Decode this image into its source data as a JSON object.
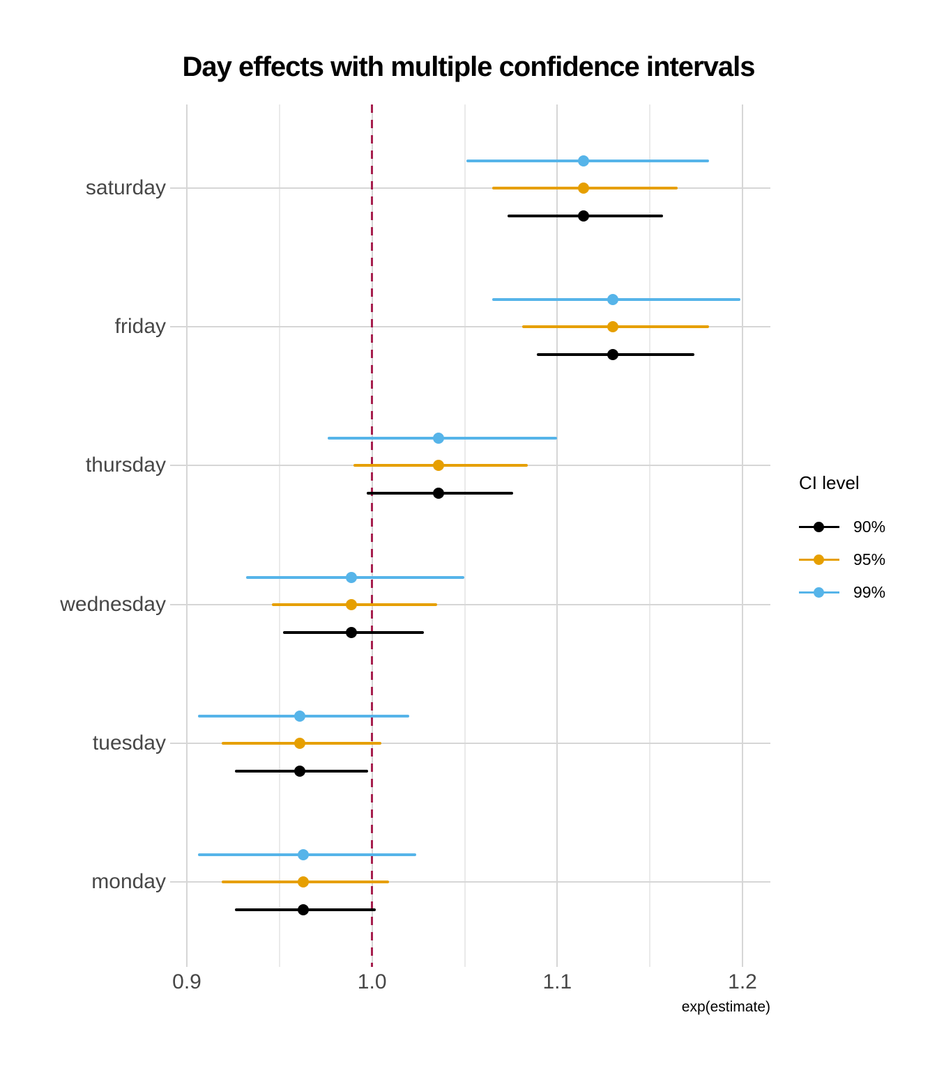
{
  "title": "Day effects with multiple confidence intervals",
  "x_axis": {
    "title": "exp(estimate)",
    "ticks": [
      {
        "label": "0.9",
        "value": 0.9
      },
      {
        "label": "1.0",
        "value": 1.0
      },
      {
        "label": "1.1",
        "value": 1.1
      },
      {
        "label": "1.2",
        "value": 1.2
      }
    ],
    "minor_gridline_values": [
      0.95,
      1.05,
      1.15
    ]
  },
  "y_axis": {
    "categories_top_to_bottom": [
      "saturday",
      "friday",
      "thursday",
      "wednesday",
      "tuesday",
      "monday"
    ]
  },
  "legend": {
    "title": "CI level",
    "items": [
      {
        "label": "90%",
        "color": "#000000"
      },
      {
        "label": "95%",
        "color": "#e69f00"
      },
      {
        "label": "99%",
        "color": "#56b4e9"
      }
    ]
  },
  "reference_line": {
    "x": 1.0,
    "color": "#a61e4d",
    "style": "dashed"
  },
  "colors": {
    "ci_90": "#000000",
    "ci_95": "#e69f00",
    "ci_99": "#56b4e9",
    "gridline_major": "#d6d6d6",
    "gridline_minor": "#eaeaea"
  },
  "chart_data": {
    "type": "scatter",
    "subtype": "dot-and-whisker confidence intervals",
    "title": "Day effects with multiple confidence intervals",
    "xlabel": "exp(estimate)",
    "ylabel": "",
    "xlim": [
      0.868,
      1.215
    ],
    "grid": true,
    "legend_position": "right",
    "categories": [
      "saturday",
      "friday",
      "thursday",
      "wednesday",
      "tuesday",
      "monday"
    ],
    "series": [
      {
        "name": "90%",
        "color": "#000000",
        "row_offset": "bottom",
        "points": [
          {
            "category": "saturday",
            "estimate": 1.114,
            "lower": 1.073,
            "upper": 1.157
          },
          {
            "category": "friday",
            "estimate": 1.13,
            "lower": 1.089,
            "upper": 1.174
          },
          {
            "category": "thursday",
            "estimate": 1.036,
            "lower": 0.997,
            "upper": 1.076
          },
          {
            "category": "wednesday",
            "estimate": 0.989,
            "lower": 0.952,
            "upper": 1.028
          },
          {
            "category": "tuesday",
            "estimate": 0.961,
            "lower": 0.926,
            "upper": 0.998
          },
          {
            "category": "monday",
            "estimate": 0.963,
            "lower": 0.926,
            "upper": 1.002
          }
        ]
      },
      {
        "name": "95%",
        "color": "#e69f00",
        "row_offset": "middle",
        "points": [
          {
            "category": "saturday",
            "estimate": 1.114,
            "lower": 1.065,
            "upper": 1.165
          },
          {
            "category": "friday",
            "estimate": 1.13,
            "lower": 1.081,
            "upper": 1.182
          },
          {
            "category": "thursday",
            "estimate": 1.036,
            "lower": 0.99,
            "upper": 1.084
          },
          {
            "category": "wednesday",
            "estimate": 0.989,
            "lower": 0.946,
            "upper": 1.035
          },
          {
            "category": "tuesday",
            "estimate": 0.961,
            "lower": 0.919,
            "upper": 1.005
          },
          {
            "category": "monday",
            "estimate": 0.963,
            "lower": 0.919,
            "upper": 1.009
          }
        ]
      },
      {
        "name": "99%",
        "color": "#56b4e9",
        "row_offset": "top",
        "points": [
          {
            "category": "saturday",
            "estimate": 1.114,
            "lower": 1.051,
            "upper": 1.182
          },
          {
            "category": "friday",
            "estimate": 1.13,
            "lower": 1.065,
            "upper": 1.199
          },
          {
            "category": "thursday",
            "estimate": 1.036,
            "lower": 0.976,
            "upper": 1.1
          },
          {
            "category": "wednesday",
            "estimate": 0.989,
            "lower": 0.932,
            "upper": 1.05
          },
          {
            "category": "tuesday",
            "estimate": 0.961,
            "lower": 0.906,
            "upper": 1.02
          },
          {
            "category": "monday",
            "estimate": 0.963,
            "lower": 0.906,
            "upper": 1.024
          }
        ]
      }
    ],
    "reference_line_x": 1.0
  }
}
